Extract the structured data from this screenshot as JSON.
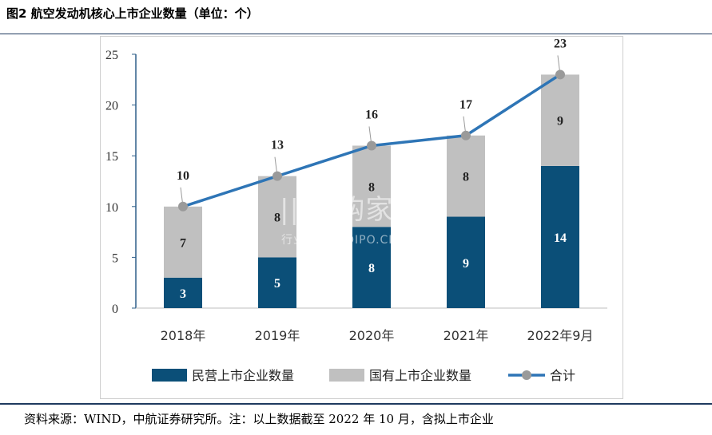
{
  "figure_title": "图2 航空发动机核心上市企业数量（单位：个）",
  "source_note": "资料来源：WIND，中航证券研究所。注：以上数据截至 2022 年 10 月，含拟上市企业",
  "watermark": {
    "main": "|||并购家",
    "sub": "行业报告 IPOIPO.CN"
  },
  "colors": {
    "private": "#0b4f78",
    "state": "#c0c0c0",
    "total_line": "#2e75b6",
    "total_marker": "#9a9a9a"
  },
  "chart_data": {
    "type": "bar",
    "stacked": true,
    "categories": [
      "2018年",
      "2019年",
      "2020年",
      "2021年",
      "2022年9月"
    ],
    "series": [
      {
        "name": "民营上市企业数量",
        "values": [
          3,
          5,
          8,
          9,
          14
        ]
      },
      {
        "name": "国有上市企业数量",
        "values": [
          7,
          8,
          8,
          8,
          9
        ]
      }
    ],
    "line_series": {
      "name": "合计",
      "values": [
        10,
        13,
        16,
        17,
        23
      ]
    },
    "ylim": [
      0,
      25
    ],
    "yticks": [
      0,
      5,
      10,
      15,
      20,
      25
    ],
    "legend_position": "bottom",
    "grid": false
  }
}
